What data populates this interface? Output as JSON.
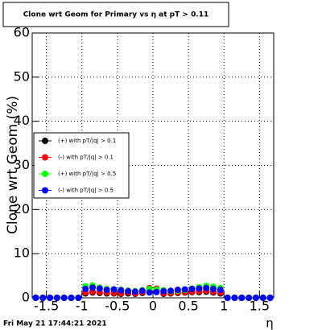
{
  "chart_data": {
    "type": "scatter",
    "title": "Clone wrt Geom for Primary vs   η at pT > 0.11",
    "y_label": "Clone wrt Geom (%)",
    "x_label": "η",
    "timestamp": "Fri May 21 17:44:21 2021",
    "xlim": [
      -1.7,
      1.7
    ],
    "ylim": [
      0,
      60
    ],
    "xticks": [
      -1.5,
      -1,
      -0.5,
      0,
      0.5,
      1,
      1.5
    ],
    "yticks": [
      0,
      10,
      20,
      30,
      40,
      50,
      60
    ],
    "grid": true,
    "legend": "left",
    "x": [
      -1.65,
      -1.55,
      -1.45,
      -1.35,
      -1.25,
      -1.15,
      -1.05,
      -0.95,
      -0.85,
      -0.75,
      -0.65,
      -0.55,
      -0.45,
      -0.35,
      -0.25,
      -0.15,
      -0.05,
      0.05,
      0.15,
      0.25,
      0.35,
      0.45,
      0.55,
      0.65,
      0.75,
      0.85,
      0.95,
      1.05,
      1.15,
      1.25,
      1.35,
      1.45,
      1.55,
      1.65
    ],
    "series": [
      {
        "name": "(+) with pT/|q| > 0.1",
        "color": "#000000",
        "values": [
          0,
          0,
          0,
          0,
          0,
          0,
          0,
          1.0,
          1.2,
          1.1,
          1.0,
          1.0,
          0.9,
          1.0,
          0.9,
          1.1,
          1.8,
          1.7,
          0.9,
          1.0,
          1.1,
          1.2,
          1.3,
          1.3,
          1.4,
          1.2,
          1.0,
          0,
          0,
          0,
          0,
          0,
          0,
          0
        ]
      },
      {
        "name": "(-) with pT/|q| > 0.1",
        "color": "#ff0000",
        "values": [
          0,
          0,
          0,
          0,
          0,
          0,
          0,
          1.2,
          1.4,
          1.3,
          1.2,
          1.1,
          1.0,
          1.2,
          1.0,
          1.3,
          2.2,
          2.1,
          1.0,
          1.1,
          1.2,
          1.3,
          1.4,
          1.5,
          1.6,
          1.4,
          1.2,
          0,
          0,
          0,
          0,
          0,
          0,
          0
        ]
      },
      {
        "name": "(+) with pT/|q| > 0.5",
        "color": "#00ff00",
        "values": [
          0,
          0,
          0,
          0,
          0,
          0,
          0,
          2.6,
          2.8,
          2.3,
          2.0,
          1.9,
          1.8,
          1.6,
          1.5,
          1.7,
          2.0,
          1.9,
          1.7,
          1.5,
          1.6,
          1.8,
          2.1,
          2.4,
          2.7,
          2.5,
          2.2,
          0,
          0,
          0,
          0,
          0,
          0,
          0
        ]
      },
      {
        "name": "(-) with pT/|q| > 0.5",
        "color": "#0000ff",
        "values": [
          0,
          0,
          0,
          0,
          0,
          0,
          0,
          2.0,
          2.3,
          2.1,
          1.8,
          1.9,
          1.7,
          1.5,
          1.4,
          1.6,
          1.2,
          1.3,
          1.5,
          1.6,
          1.8,
          1.9,
          2.0,
          2.1,
          2.2,
          2.0,
          1.8,
          0,
          0,
          0,
          0,
          0,
          0,
          0
        ]
      }
    ]
  }
}
